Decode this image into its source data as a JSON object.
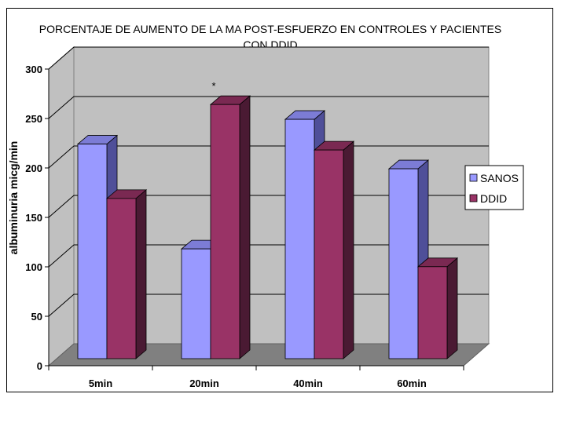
{
  "chart_data": {
    "type": "bar",
    "title_lines": [
      "PORCENTAJE DE AUMENTO DE LA MA POST-ESFUERZO EN CONTROLES Y PACIENTES",
      "CON DDID"
    ],
    "xlabel": "",
    "ylabel": "albuminuria micg/min",
    "ylim": [
      0,
      300
    ],
    "yticks": [
      "0",
      "50",
      "100",
      "150",
      "200",
      "250",
      "300"
    ],
    "categories": [
      "5min",
      "20min",
      "40min",
      "60min"
    ],
    "series": [
      {
        "name": "SANOS",
        "values": [
          217,
          111,
          242,
          192
        ],
        "color": "#9999FF",
        "top": "#7C7CD6",
        "side": "#4F4F99"
      },
      {
        "name": "DDID",
        "values": [
          162,
          257,
          211,
          93
        ],
        "color": "#993366",
        "top": "#7A2952",
        "side": "#4A1A33"
      }
    ],
    "annotation": {
      "category": "20min",
      "text": "*"
    },
    "grid": true,
    "legend": "right",
    "colors": {
      "wall": "#C0C0C0",
      "floor": "#808080",
      "gridline": "#000000"
    }
  }
}
